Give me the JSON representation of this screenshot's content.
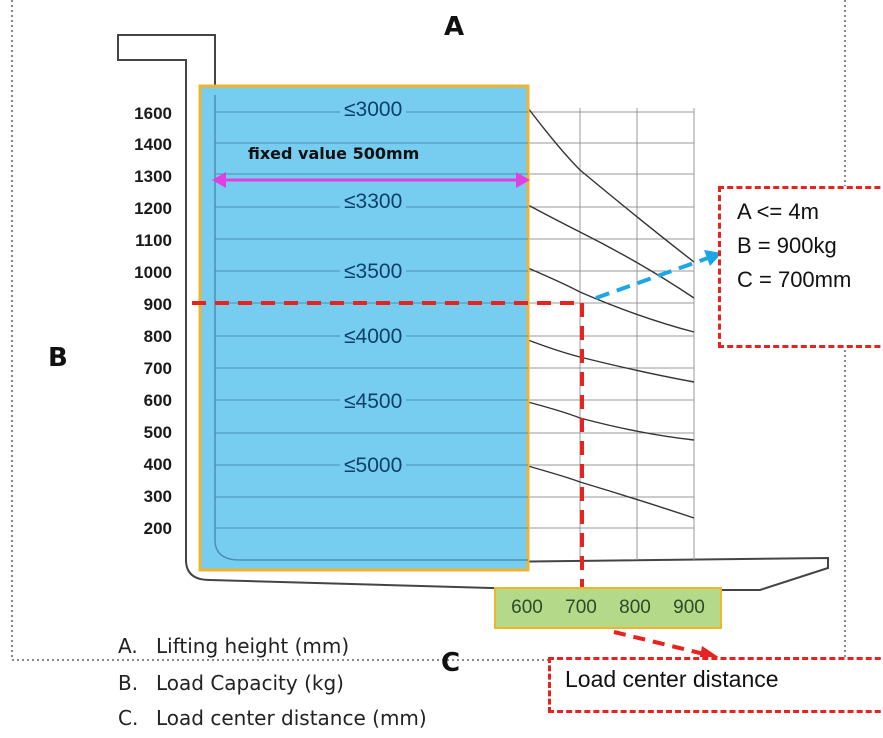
{
  "letters": {
    "a": "A",
    "b": "B",
    "c": "C"
  },
  "y_ticks": [
    "1600",
    "1400",
    "1300",
    "1200",
    "1100",
    "1000",
    "900",
    "800",
    "700",
    "600",
    "500",
    "400",
    "300",
    "200"
  ],
  "capacities": [
    "≤3000",
    "≤3300",
    "≤3500",
    "≤4000",
    "≤4500",
    "≤5000"
  ],
  "fixed_value_label": "fixed value 500mm",
  "x_ticks": [
    "600",
    "700",
    "800",
    "900"
  ],
  "annotation": {
    "line_a": "A <= 4m",
    "line_b": "B = 900kg",
    "line_c": "C = 700mm"
  },
  "load_center_box": "Load center distance",
  "legend": [
    {
      "key": "A.",
      "text": "Lifting height (mm)"
    },
    {
      "key": "B.",
      "text": "Load Capacity (kg)"
    },
    {
      "key": "C.",
      "text": "Load center distance (mm)"
    }
  ],
  "colors": {
    "highlight_fill": "#76cdf0",
    "highlight_border": "#f0b52c",
    "axis_box": "#b3d989",
    "red_dashed": "#e8221f",
    "blue_arrow": "#1aa7e6",
    "magenta_arrow": "#e040e0"
  }
}
